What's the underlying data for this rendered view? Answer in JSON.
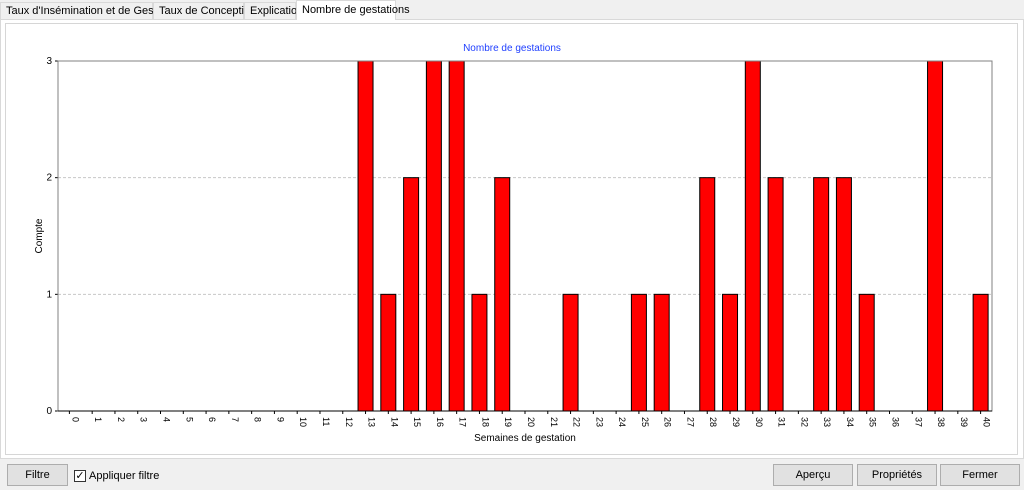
{
  "tabs": [
    {
      "label": "Taux d'Insémination et de Gestation",
      "active": false
    },
    {
      "label": "Taux de Conception",
      "active": false
    },
    {
      "label": "Explication",
      "active": false
    },
    {
      "label": "Nombre de gestations",
      "active": true
    }
  ],
  "buttons": {
    "filter": "Filtre",
    "apply_filter_label": "Appliquer filtre",
    "apply_filter_checked": true,
    "preview": "Aperçu",
    "properties": "Propriétés",
    "close": "Fermer"
  },
  "colors": {
    "bar_fill": "#ff0000",
    "bar_stroke": "#000000",
    "title": "#1f3fff",
    "grid": "#c8c8c8"
  },
  "chart_data": {
    "type": "bar",
    "title": "Nombre de gestations",
    "xlabel": "Semaines de gestation",
    "ylabel": "Compte",
    "categories": [
      "0",
      "1",
      "2",
      "3",
      "4",
      "5",
      "6",
      "7",
      "8",
      "9",
      "10",
      "11",
      "12",
      "13",
      "14",
      "15",
      "16",
      "17",
      "18",
      "19",
      "20",
      "21",
      "22",
      "23",
      "24",
      "25",
      "26",
      "27",
      "28",
      "29",
      "30",
      "31",
      "32",
      "33",
      "34",
      "35",
      "36",
      "37",
      "38",
      "39",
      "40"
    ],
    "values": [
      0,
      0,
      0,
      0,
      0,
      0,
      0,
      0,
      0,
      0,
      0,
      0,
      0,
      3,
      1,
      2,
      3,
      3,
      1,
      2,
      0,
      0,
      1,
      0,
      0,
      1,
      1,
      0,
      2,
      1,
      3,
      2,
      0,
      2,
      2,
      1,
      0,
      0,
      3,
      0,
      1
    ],
    "yticks": [
      0,
      1,
      2,
      3
    ],
    "ylim": [
      0,
      3
    ],
    "grid": true
  }
}
